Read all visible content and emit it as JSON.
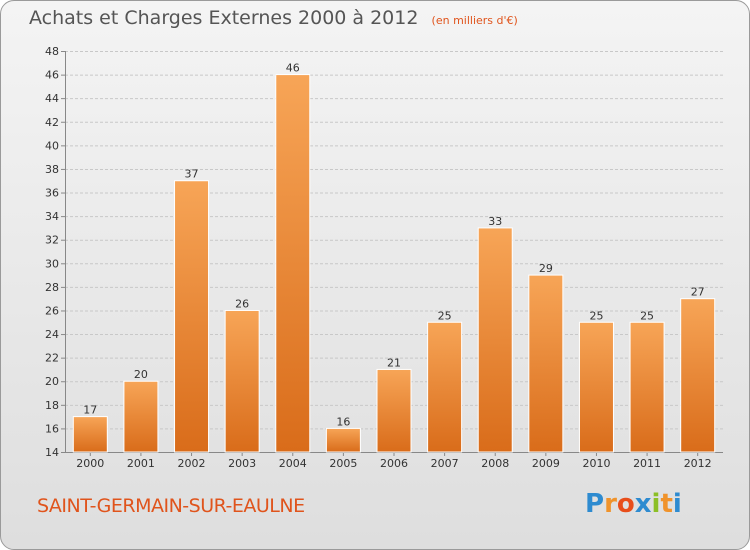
{
  "header": {
    "title": "Achats et Charges Externes 2000 à 2012",
    "subtitle": "(en milliers d'€)"
  },
  "footer": {
    "commune": "SAINT-GERMAIN-SUR-EAULNE",
    "logo_letters": [
      "P",
      "r",
      "o",
      "x",
      "i",
      "t",
      "i"
    ],
    "logo_colors": [
      "#2e8bd0",
      "#f0932b",
      "#e84e1b",
      "#2e8bd0",
      "#8cbf26",
      "#f0932b",
      "#2e8bd0"
    ]
  },
  "chart_data": {
    "type": "bar",
    "title": "Achats et Charges Externes 2000 à 2012",
    "subtitle": "(en milliers d'€)",
    "categories": [
      "2000",
      "2001",
      "2002",
      "2003",
      "2004",
      "2005",
      "2006",
      "2007",
      "2008",
      "2009",
      "2010",
      "2011",
      "2012"
    ],
    "values": [
      17,
      20,
      37,
      26,
      46,
      16,
      21,
      25,
      33,
      29,
      25,
      25,
      27
    ],
    "ylim": [
      14,
      48
    ],
    "yticks": [
      14,
      16,
      18,
      20,
      22,
      24,
      26,
      28,
      30,
      32,
      34,
      36,
      38,
      40,
      42,
      44,
      46,
      48
    ],
    "grid": true,
    "bar_color_top": "#f7a557",
    "bar_color_bottom": "#d96c1a"
  }
}
